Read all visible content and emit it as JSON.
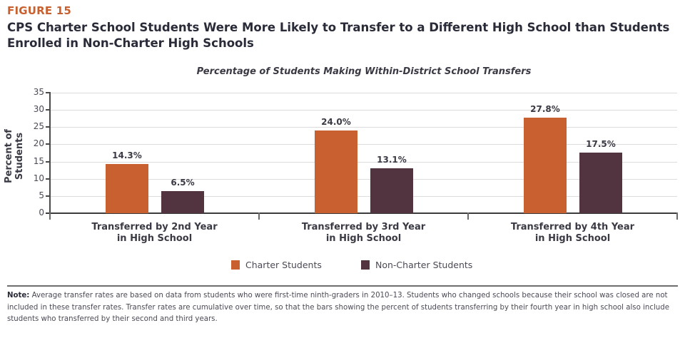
{
  "figure": {
    "label": "FIGURE 15",
    "title": "CPS Charter School Students Were More Likely to Transfer to a Different High School than Students Enrolled in Non-Charter High Schools"
  },
  "colors": {
    "charter": "#c8602f",
    "non_charter": "#523440",
    "figure_label": "#c8602f"
  },
  "chart_data": {
    "type": "bar",
    "title": "Percentage of Students Making Within-District School Transfers",
    "xlabel": "",
    "ylabel": "Percent of Students",
    "ylim": [
      0,
      35
    ],
    "yticks": [
      0,
      5,
      10,
      15,
      20,
      25,
      30,
      35
    ],
    "grid": true,
    "legend_position": "bottom",
    "categories": [
      "Transferred by 2nd Year in High School",
      "Transferred by 3rd Year in High School",
      "Transferred by 4th Year in High School"
    ],
    "category_lines": [
      [
        "Transferred by 2nd Year",
        "in High School"
      ],
      [
        "Transferred by 3rd Year",
        "in High School"
      ],
      [
        "Transferred by 4th Year",
        "in High School"
      ]
    ],
    "series": [
      {
        "name": "Charter Students",
        "values": [
          14.3,
          24.0,
          27.8
        ],
        "labels": [
          "14.3%",
          "24.0%",
          "27.8%"
        ]
      },
      {
        "name": "Non-Charter Students",
        "values": [
          6.5,
          13.1,
          17.5
        ],
        "labels": [
          "6.5%",
          "13.1%",
          "17.5%"
        ]
      }
    ]
  },
  "note": {
    "prefix": "Note:",
    "text": " Average transfer rates are based on data from students who were first-time ninth-graders in 2010–13. Students who changed schools because their school was closed are not included in these transfer rates. Transfer rates are cumulative over time, so that the bars showing the percent of students transferring by their fourth year in high school also include students who transferred by their second and third years."
  }
}
